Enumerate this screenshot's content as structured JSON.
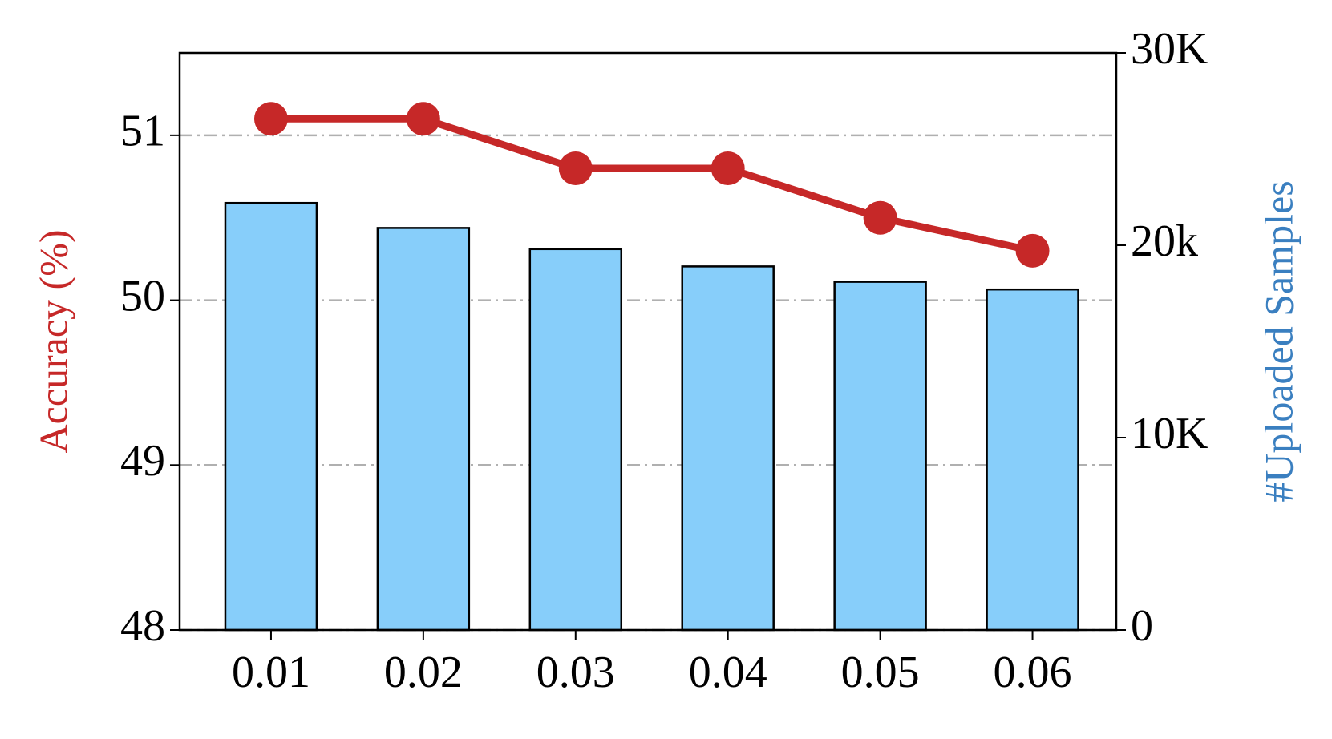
{
  "chart_data": {
    "type": "bar",
    "y_label": "Accuracy (%)",
    "y2_label": "#Uploaded Samples",
    "y_label_color": "#c62828",
    "y2_label_color": "#3a7fc0",
    "categories": [
      "0.01",
      "0.02",
      "0.03",
      "0.04",
      "0.05",
      "0.06"
    ],
    "series": [
      {
        "type": "bar",
        "axis": "y2",
        "color": "#87cefa",
        "values": [
          22200,
          20900,
          19800,
          18900,
          18100,
          17700
        ]
      },
      {
        "type": "line",
        "color": "#c62828",
        "values": [
          51.1,
          51.1,
          50.8,
          50.8,
          50.5,
          50.3
        ]
      }
    ],
    "ylim": [
      48,
      51.5
    ],
    "yticks": [
      48,
      49,
      50,
      51
    ],
    "y2lim": [
      0,
      30000
    ],
    "y2ticks": [
      0,
      {
        "value": 10000,
        "label": "10K"
      },
      {
        "value": 20000,
        "label": "20k"
      },
      {
        "value": 30000,
        "label": "30K"
      }
    ],
    "grid": true
  }
}
